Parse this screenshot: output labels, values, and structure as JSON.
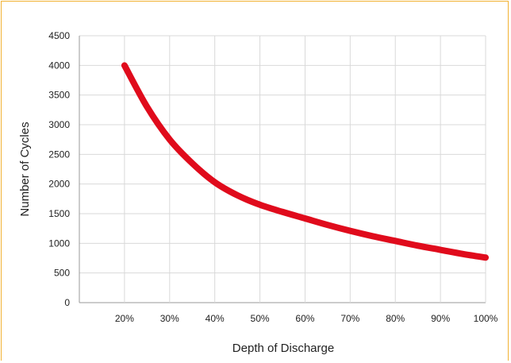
{
  "chart_data": {
    "type": "line",
    "title": "",
    "xlabel": "Depth of Discharge",
    "ylabel": "Number of Cycles",
    "x_tick_labels": [
      "20%",
      "30%",
      "40%",
      "50%",
      "60%",
      "70%",
      "80%",
      "90%",
      "100%"
    ],
    "y_tick_labels": [
      "0",
      "500",
      "1000",
      "1500",
      "2000",
      "2500",
      "3000",
      "3500",
      "4000",
      "4500"
    ],
    "xlim": [
      10,
      100
    ],
    "ylim": [
      0,
      4500
    ],
    "x_ticks": [
      20,
      30,
      40,
      50,
      60,
      70,
      80,
      90,
      100
    ],
    "y_ticks": [
      0,
      500,
      1000,
      1500,
      2000,
      2500,
      3000,
      3500,
      4000,
      4500
    ],
    "grid": true,
    "series": [
      {
        "color": "#e00b1c",
        "x": [
          20,
          25,
          30,
          35,
          40,
          45,
          50,
          55,
          60,
          65,
          70,
          75,
          80,
          85,
          90,
          95,
          100
        ],
        "y": [
          4000,
          3300,
          2750,
          2350,
          2030,
          1810,
          1650,
          1530,
          1420,
          1310,
          1210,
          1120,
          1040,
          960,
          890,
          820,
          760
        ]
      }
    ]
  }
}
